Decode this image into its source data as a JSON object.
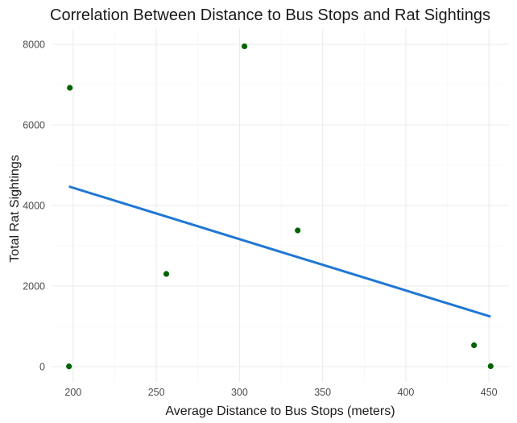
{
  "chart_data": {
    "type": "scatter",
    "title": "Correlation Between Distance to Bus Stops and Rat Sightings",
    "xlabel": "Average Distance to Bus Stops (meters)",
    "ylabel": "Total Rat Sightings",
    "xlim": [
      187,
      462
    ],
    "ylim": [
      -380,
      8380
    ],
    "x_ticks": [
      200,
      250,
      300,
      350,
      400,
      450
    ],
    "y_ticks": [
      0,
      2000,
      4000,
      6000,
      8000
    ],
    "x_tick_labels": [
      "200",
      "250",
      "300",
      "350",
      "400",
      "450"
    ],
    "y_tick_labels": [
      "0",
      "2000",
      "4000",
      "6000",
      "8000"
    ],
    "grid": true,
    "legend": "none",
    "series": [
      {
        "points": [
          {
            "x": 198,
            "y": 6920
          },
          {
            "x": 197.5,
            "y": 5
          },
          {
            "x": 256,
            "y": 2300
          },
          {
            "x": 303,
            "y": 7950
          },
          {
            "x": 335,
            "y": 3380
          },
          {
            "x": 441,
            "y": 530
          },
          {
            "x": 451,
            "y": 10
          }
        ],
        "color": "#006400"
      }
    ],
    "trendline": {
      "type": "linear",
      "x": [
        197.5,
        451
      ],
      "y": [
        4470,
        1240
      ],
      "color": "#1f77d4"
    }
  }
}
